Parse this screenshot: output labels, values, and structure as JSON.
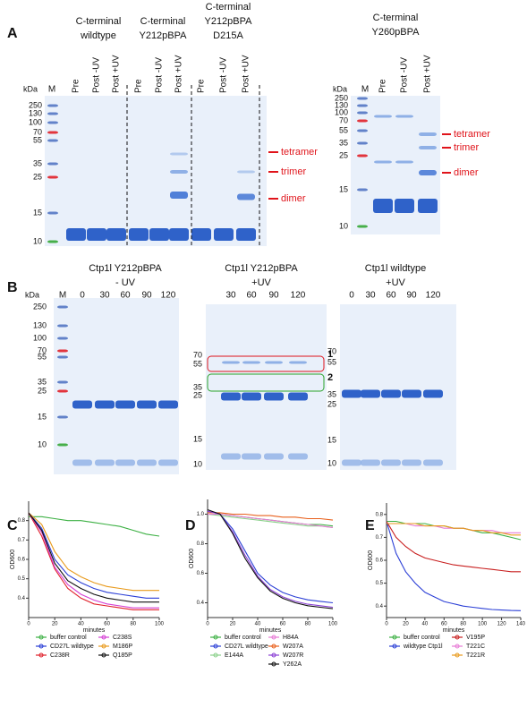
{
  "panel_labels": [
    "A",
    "B",
    "C",
    "D",
    "E"
  ],
  "kda": "kDa",
  "marker_lane": "M",
  "gel_a": {
    "groups": [
      [
        "C-terminal",
        "wildtype"
      ],
      [
        "C-terminal",
        "Y212pBPA"
      ],
      [
        "C-terminal",
        "Y212pBPA",
        "D215A"
      ]
    ],
    "lanes": [
      "Pre",
      "Post -UV",
      "Post +UV"
    ],
    "markers": [
      250,
      130,
      100,
      70,
      55,
      35,
      25,
      15,
      10
    ],
    "bands": [
      "tetramer",
      "trimer",
      "dimer"
    ]
  },
  "gel_a2": {
    "header": [
      "C-terminal",
      "Y260pBPA"
    ],
    "lanes": [
      "Pre",
      "Post -UV",
      "Post +UV"
    ],
    "markers": [
      250,
      130,
      100,
      70,
      55,
      35,
      25,
      15,
      10
    ],
    "bands": [
      "tetramer",
      "trimer",
      "dimer"
    ]
  },
  "gel_b": [
    {
      "header": [
        "Ctp1l Y212pBPA",
        "- UV"
      ],
      "lanes": [
        0,
        30,
        60,
        90,
        120
      ],
      "markers": [
        250,
        130,
        100,
        70,
        55,
        35,
        25,
        15,
        10
      ]
    },
    {
      "header": [
        "Ctp1l Y212pBPA",
        "+UV"
      ],
      "lanes": [
        30,
        60,
        90,
        120
      ],
      "markers": [
        70,
        55,
        35,
        25,
        15,
        10
      ],
      "boxes": [
        "1",
        "2"
      ]
    },
    {
      "header": [
        "Ctp1l wildtype",
        "+UV"
      ],
      "lanes": [
        0,
        30,
        60,
        90,
        120
      ],
      "markers": [
        70,
        55,
        35,
        25,
        15,
        10
      ]
    }
  ],
  "chart_data": [
    {
      "type": "line",
      "x_label": "minutes",
      "y_label": "OD600",
      "x": [
        0,
        10,
        20,
        30,
        40,
        50,
        60,
        70,
        80,
        90,
        100
      ],
      "xlim": [
        0,
        100
      ],
      "xticks": [
        0,
        20,
        40,
        60,
        80,
        100
      ],
      "ylim": [
        0.3,
        0.9
      ],
      "yticks": [
        0.4,
        0.5,
        0.6,
        0.7,
        0.8
      ],
      "series": [
        {
          "name": "buffer control",
          "color": "#3cb043",
          "values": [
            0.82,
            0.82,
            0.81,
            0.8,
            0.8,
            0.79,
            0.78,
            0.77,
            0.75,
            0.73,
            0.72
          ]
        },
        {
          "name": "CD27L wildtype",
          "color": "#2b3fd6",
          "values": [
            0.84,
            0.76,
            0.6,
            0.52,
            0.48,
            0.45,
            0.43,
            0.42,
            0.41,
            0.4,
            0.4
          ]
        },
        {
          "name": "C238R",
          "color": "#e0202a",
          "values": [
            0.84,
            0.72,
            0.55,
            0.45,
            0.4,
            0.37,
            0.36,
            0.35,
            0.34,
            0.34,
            0.34
          ]
        },
        {
          "name": "C238S",
          "color": "#d43fd4",
          "values": [
            0.84,
            0.74,
            0.56,
            0.47,
            0.42,
            0.39,
            0.37,
            0.36,
            0.35,
            0.35,
            0.35
          ]
        },
        {
          "name": "M186P",
          "color": "#e89a1c",
          "values": [
            0.84,
            0.78,
            0.64,
            0.55,
            0.51,
            0.48,
            0.46,
            0.45,
            0.44,
            0.44,
            0.44
          ]
        },
        {
          "name": "Q185P",
          "color": "#111111",
          "values": [
            0.84,
            0.75,
            0.58,
            0.49,
            0.45,
            0.42,
            0.4,
            0.39,
            0.38,
            0.38,
            0.38
          ]
        }
      ]
    },
    {
      "type": "line",
      "x_label": "minutes",
      "y_label": "OD600",
      "x": [
        0,
        10,
        20,
        30,
        40,
        50,
        60,
        70,
        80,
        90,
        100
      ],
      "xlim": [
        0,
        100
      ],
      "xticks": [
        0,
        20,
        40,
        60,
        80,
        100
      ],
      "ylim": [
        0.3,
        1.1
      ],
      "yticks": [
        0.4,
        0.6,
        0.8,
        {
          "value": 1,
          "label": "1.0"
        }
      ],
      "series": [
        {
          "name": "buffer control",
          "color": "#3cb043",
          "values": [
            1.0,
            1.0,
            0.99,
            0.98,
            0.97,
            0.96,
            0.95,
            0.94,
            0.93,
            0.93,
            0.92
          ]
        },
        {
          "name": "CD27L wildtype",
          "color": "#2b3fd6",
          "values": [
            1.02,
            1.0,
            0.9,
            0.75,
            0.6,
            0.52,
            0.47,
            0.44,
            0.42,
            0.41,
            0.4
          ]
        },
        {
          "name": "E144A",
          "color": "#8ad08a",
          "values": [
            1.0,
            0.99,
            0.98,
            0.97,
            0.96,
            0.95,
            0.94,
            0.93,
            0.92,
            0.92,
            0.91
          ]
        },
        {
          "name": "H84A",
          "color": "#e77bd6",
          "values": [
            1.0,
            1.0,
            0.99,
            0.98,
            0.97,
            0.96,
            0.95,
            0.94,
            0.93,
            0.92,
            0.91
          ]
        },
        {
          "name": "W207A",
          "color": "#e8601c",
          "values": [
            1.01,
            1.01,
            1.0,
            1.0,
            0.99,
            0.99,
            0.98,
            0.98,
            0.97,
            0.97,
            0.96
          ]
        },
        {
          "name": "W207R",
          "color": "#8a3fd4",
          "values": [
            1.02,
            1.0,
            0.88,
            0.72,
            0.58,
            0.49,
            0.44,
            0.41,
            0.39,
            0.38,
            0.37
          ]
        },
        {
          "name": "Y262A",
          "color": "#111111",
          "values": [
            1.03,
            1.0,
            0.87,
            0.7,
            0.57,
            0.48,
            0.43,
            0.4,
            0.38,
            0.37,
            0.36
          ]
        }
      ]
    },
    {
      "type": "line",
      "x_label": "minutes",
      "y_label": "OD600",
      "x": [
        0,
        10,
        20,
        30,
        40,
        50,
        60,
        70,
        80,
        90,
        100,
        110,
        120,
        130,
        140
      ],
      "xlim": [
        0,
        140
      ],
      "xticks": [
        0,
        20,
        40,
        60,
        80,
        100,
        120,
        140
      ],
      "ylim": [
        0.35,
        0.85
      ],
      "yticks": [
        0.4,
        0.5,
        0.6,
        0.7,
        0.8
      ],
      "series": [
        {
          "name": "buffer control",
          "color": "#3cb043",
          "values": [
            0.77,
            0.77,
            0.76,
            0.76,
            0.76,
            0.75,
            0.75,
            0.74,
            0.74,
            0.73,
            0.72,
            0.72,
            0.71,
            0.7,
            0.69
          ]
        },
        {
          "name": "wildtype  Ctp1l",
          "color": "#2b3fd6",
          "values": [
            0.77,
            0.63,
            0.55,
            0.5,
            0.46,
            0.44,
            0.42,
            0.41,
            0.4,
            0.395,
            0.39,
            0.385,
            0.383,
            0.381,
            0.38
          ]
        },
        {
          "name": "V195P",
          "color": "#c81e1e",
          "values": [
            0.77,
            0.7,
            0.66,
            0.63,
            0.61,
            0.6,
            0.59,
            0.58,
            0.575,
            0.57,
            0.565,
            0.56,
            0.555,
            0.55,
            0.55
          ]
        },
        {
          "name": "T221C",
          "color": "#e77bd6",
          "values": [
            0.76,
            0.76,
            0.76,
            0.75,
            0.75,
            0.75,
            0.74,
            0.74,
            0.74,
            0.73,
            0.73,
            0.73,
            0.72,
            0.72,
            0.72
          ]
        },
        {
          "name": "T221R",
          "color": "#e89a1c",
          "values": [
            0.76,
            0.76,
            0.76,
            0.76,
            0.75,
            0.75,
            0.75,
            0.74,
            0.74,
            0.73,
            0.73,
            0.72,
            0.72,
            0.71,
            0.71
          ]
        }
      ]
    }
  ]
}
